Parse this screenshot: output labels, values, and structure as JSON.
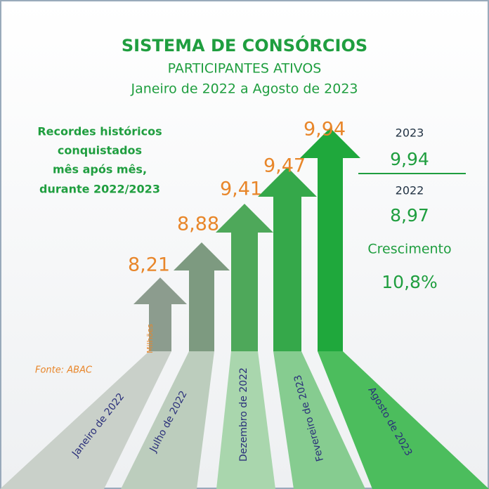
{
  "header": {
    "title": "SISTEMA DE CONSÓRCIOS",
    "subtitle": "PARTICIPANTES ATIVOS",
    "period": "Janeiro de 2022 a Agosto de 2023"
  },
  "note": [
    "Recordes históricos",
    "conquistados",
    "mês após mês,",
    "durante 2022/2023"
  ],
  "unit": "Milhões",
  "source": "Fonte: ABAC",
  "arrows": [
    {
      "value": "8,21",
      "label": "Janeiro de 2022"
    },
    {
      "value": "8,88",
      "label": "Julho de 2022"
    },
    {
      "value": "9,41",
      "label": "Dezembro de 2022"
    },
    {
      "value": "9,47",
      "label": "Fevereiro de 2023"
    },
    {
      "value": "9,94",
      "label": "Agosto de 2023"
    }
  ],
  "summary": {
    "year_current": "2023",
    "value_current": "9,94",
    "year_previous": "2022",
    "value_previous": "8,97",
    "growth_label": "Crescimento",
    "growth": "10,8%"
  }
}
